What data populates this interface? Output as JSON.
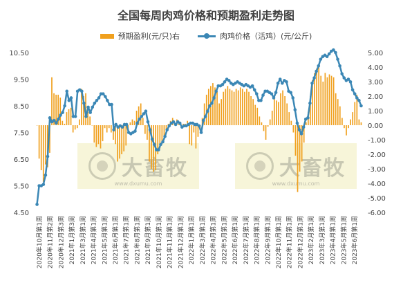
{
  "chart_data": {
    "type": "bar+line",
    "title": "全国每周肉鸡价格和预期盈利走势图",
    "legend": [
      "预期盈利(元/只)右",
      "肉鸡价格（活鸡）(元/公斤)"
    ],
    "legend_position": "top",
    "left_axis": {
      "min": 4.5,
      "max": 10.5,
      "ticks": [
        "10.50",
        "9.50",
        "8.50",
        "7.50",
        "6.50",
        "5.50",
        "4.50"
      ]
    },
    "right_axis": {
      "min": -6,
      "max": 5,
      "ticks": [
        "5.00",
        "4.00",
        "3.00",
        "2.00",
        "1.00",
        "0.00",
        "-1.00",
        "-2.00",
        "-3.00",
        "-4.00",
        "-5.00",
        "-6.00"
      ]
    },
    "x_labels": [
      "2020年10月第1周",
      "2020年11月第2周",
      "2020年12月第3周",
      "2021年1月第3周",
      "2021年3月第1周",
      "2021年4月第1周",
      "2021年5月第1周",
      "2021年6月第1周",
      "2021年7月第1周",
      "2021年8月第1周",
      "2021年9月第1周",
      "2021年10月第1周",
      "2021年11月第1周",
      "2021年12月第1周",
      "2022年1月第1周",
      "2022年3月第1周",
      "2022年4月第1周",
      "2022年5月第1周",
      "2022年6月第1周",
      "2022年7月第1周",
      "2022年8月第1周",
      "2022年9月第1周",
      "2022年10月第1周",
      "2022年11月第1周",
      "2022年12月第1周",
      "2023年2月第1周",
      "2023年3月第1周",
      "2023年4月第1周",
      "2023年5月第1周",
      "2023年6月第1周"
    ],
    "series": [
      {
        "name": "肉鸡价格（活鸡）(元/公斤)",
        "axis": "left",
        "color": "#3b87b5",
        "values": [
          4.8,
          5.5,
          5.5,
          5.55,
          5.9,
          6.6,
          8.05,
          7.9,
          7.95,
          7.85,
          8.0,
          8.15,
          8.25,
          8.5,
          9.05,
          8.7,
          8.8,
          8.1,
          8.1,
          9.05,
          9.1,
          9.05,
          8.6,
          8.1,
          8.45,
          8.25,
          8.45,
          8.6,
          8.7,
          8.8,
          8.95,
          8.95,
          8.85,
          8.7,
          8.55,
          8.55,
          7.6,
          7.8,
          7.7,
          7.75,
          7.7,
          7.8,
          7.8,
          7.5,
          7.45,
          7.5,
          7.55,
          7.85,
          8.0,
          8.1,
          8.2,
          8.3,
          7.9,
          7.6,
          7.25,
          7.05,
          6.85,
          6.85,
          7.05,
          7.15,
          7.35,
          7.6,
          7.75,
          7.85,
          7.9,
          7.8,
          7.9,
          7.85,
          7.7,
          7.75,
          7.75,
          7.8,
          7.85,
          7.85,
          7.8,
          7.8,
          7.75,
          7.5,
          7.95,
          8.1,
          8.3,
          8.5,
          8.6,
          8.8,
          9.05,
          9.25,
          9.25,
          9.3,
          9.4,
          9.5,
          9.45,
          9.35,
          9.3,
          9.35,
          9.4,
          9.35,
          9.3,
          9.25,
          9.3,
          9.25,
          9.2,
          9.25,
          9.1,
          8.95,
          8.7,
          8.7,
          8.9,
          9.05,
          9.05,
          9.0,
          8.95,
          8.8,
          9.0,
          9.35,
          9.5,
          9.35,
          9.45,
          9.4,
          9.05,
          9.0,
          8.8,
          8.35,
          7.85,
          7.6,
          7.45,
          7.7,
          8.0,
          8.05,
          8.6,
          9.35,
          9.55,
          9.8,
          10.0,
          10.25,
          10.35,
          10.4,
          10.35,
          10.45,
          10.55,
          10.6,
          10.5,
          10.25,
          10.0,
          9.7,
          9.55,
          9.45,
          9.5,
          9.4,
          9.1,
          8.95,
          8.8,
          8.7,
          8.5
        ]
      },
      {
        "name": "预期盈利(元/只)右",
        "axis": "right",
        "color": "#f0a01e",
        "values": [
          0.0,
          -2.3,
          -3.1,
          -3.9,
          -2.7,
          -2.9,
          -1.9,
          3.3,
          2.2,
          2.1,
          2.1,
          1.9,
          0.3,
          0.1,
          0.9,
          1.1,
          1.2,
          -0.5,
          -0.3,
          -0.2,
          0.4,
          2.5,
          2.0,
          2.2,
          1.2,
          0.6,
          0.0,
          -1.2,
          -1.5,
          -1.3,
          -1.6,
          -1.1,
          -0.2,
          -0.5,
          -0.2,
          -0.5,
          -1.0,
          -1.3,
          -2.5,
          -2.3,
          -2.0,
          -1.8,
          -1.4,
          -0.6,
          0.2,
          0.4,
          0.3,
          1.0,
          1.3,
          1.5,
          0.5,
          -0.6,
          -1.0,
          -2.5,
          -3.0,
          -3.2,
          -3.1,
          -2.0,
          -1.6,
          -1.2,
          -0.8,
          -0.3,
          0.1,
          0.3,
          0.5,
          0.1,
          0.4,
          0.2,
          0.0,
          0.1,
          0.1,
          0.3,
          -1.3,
          -1.4,
          -0.5,
          -1.6,
          -0.8,
          -0.3,
          0.5,
          1.5,
          2.1,
          2.5,
          2.7,
          2.9,
          2.6,
          2.3,
          1.5,
          1.8,
          2.3,
          2.5,
          2.7,
          2.5,
          2.4,
          2.3,
          2.5,
          2.4,
          2.6,
          2.5,
          2.3,
          2.5,
          2.3,
          2.0,
          1.8,
          1.4,
          1.2,
          0.6,
          0.2,
          -0.4,
          -1.0,
          -0.1,
          0.4,
          1.0,
          1.8,
          1.7,
          1.6,
          2.2,
          2.4,
          2.0,
          1.5,
          0.9,
          0.3,
          -0.5,
          -2.1,
          -4.6,
          -3.2,
          -2.5,
          -1.2,
          0.2,
          0.9,
          2.0,
          3.1,
          3.6,
          3.9,
          4.2,
          3.4,
          3.0,
          3.6,
          3.3,
          3.5,
          3.4,
          3.3,
          2.2,
          1.8,
          1.3,
          0.5,
          -0.2,
          -0.7,
          -0.2,
          0.4,
          0.9,
          1.6,
          2.1,
          0.4,
          0.2
        ]
      }
    ],
    "watermark": {
      "text": "大畜牧",
      "url": "www.dxumu.com"
    }
  }
}
